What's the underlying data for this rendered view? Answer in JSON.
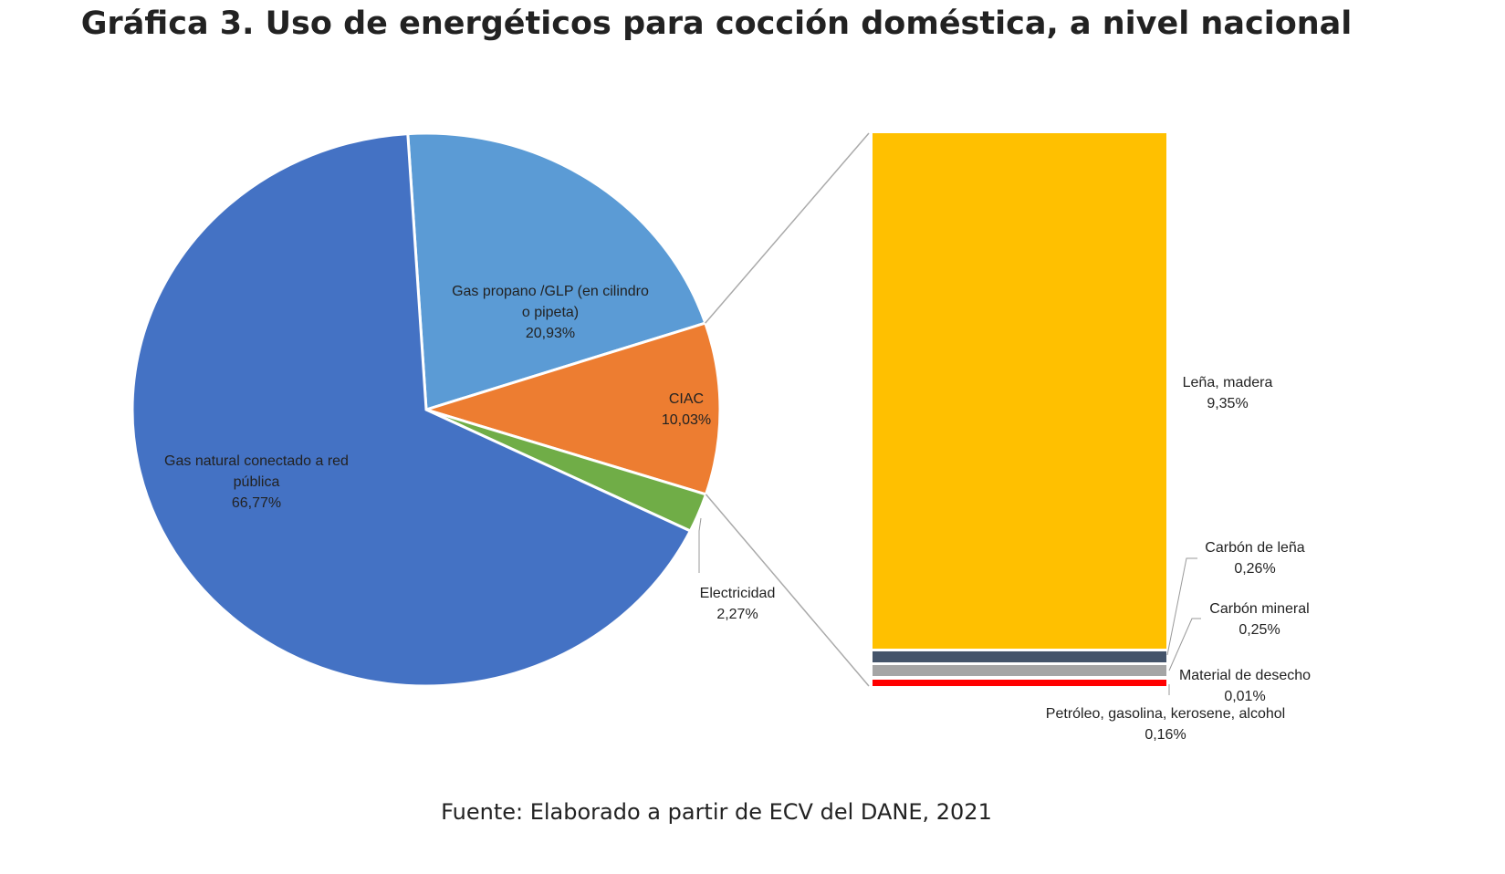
{
  "chart_data": {
    "type": "pie",
    "title": "Gráfica 3. Uso de energéticos para cocción doméstica, a nivel nacional",
    "source": "Fuente: Elaborado a partir de ECV del DANE, 2021",
    "pie": [
      {
        "label": "Gas propano /GLP (en cilindro o pipeta)",
        "lines": [
          "Gas propano /GLP (en cilindro",
          "o pipeta)",
          "20,93%"
        ],
        "value": 20.93,
        "color": "#5B9BD5"
      },
      {
        "label": "CIAC",
        "lines": [
          "CIAC",
          "10,03%"
        ],
        "value": 10.03,
        "color": "#ED7D31"
      },
      {
        "label": "Electricidad",
        "lines": [
          "Electricidad",
          "2,27%"
        ],
        "value": 2.27,
        "color": "#70AD47"
      },
      {
        "label": "Gas natural conectado a red pública",
        "lines": [
          "Gas natural conectado a red",
          "pública",
          "66,77%"
        ],
        "value": 66.77,
        "color": "#4472C4"
      }
    ],
    "bar_breakdown_of": "CIAC",
    "bar": [
      {
        "label": "Leña, madera",
        "lines": [
          "Leña, madera",
          "9,35%"
        ],
        "value": 9.35,
        "color": "#FFC000"
      },
      {
        "label": "Carbón de leña",
        "lines": [
          "Carbón de leña",
          "0,26%"
        ],
        "value": 0.26,
        "color": "#44546A"
      },
      {
        "label": "Carbón mineral",
        "lines": [
          "Carbón mineral",
          "0,25%"
        ],
        "value": 0.25,
        "color": "#A5A5A5"
      },
      {
        "label": "Material de desecho",
        "lines": [
          "Material de desecho",
          "0,01%"
        ],
        "value": 0.01,
        "color": "#FFFFFF"
      },
      {
        "label": "Petróleo, gasolina, kerosene, alcohol",
        "lines": [
          "Petróleo, gasolina, kerosene, alcohol",
          "0,16%"
        ],
        "value": 0.16,
        "color": "#FF0000"
      }
    ]
  }
}
